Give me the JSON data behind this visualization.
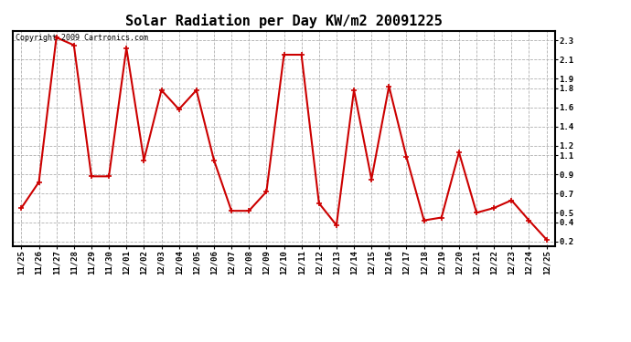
{
  "title": "Solar Radiation per Day KW/m2 20091225",
  "copyright_text": "Copyright 2009 Cartronics.com",
  "labels": [
    "11/25",
    "11/26",
    "11/27",
    "11/28",
    "11/29",
    "11/30",
    "12/01",
    "12/02",
    "12/03",
    "12/04",
    "12/05",
    "12/06",
    "12/07",
    "12/08",
    "12/09",
    "12/10",
    "12/11",
    "12/12",
    "12/13",
    "12/14",
    "12/15",
    "12/16",
    "12/17",
    "12/18",
    "12/19",
    "12/20",
    "12/21",
    "12/22",
    "12/23",
    "12/24",
    "12/25"
  ],
  "values": [
    0.55,
    0.82,
    2.33,
    2.25,
    0.88,
    0.88,
    2.22,
    1.05,
    1.78,
    1.58,
    1.78,
    1.05,
    0.52,
    0.52,
    0.72,
    2.15,
    2.15,
    0.6,
    0.37,
    1.78,
    0.85,
    1.82,
    1.08,
    0.42,
    0.45,
    1.13,
    0.5,
    0.55,
    0.63,
    0.42,
    0.22
  ],
  "line_color": "#cc0000",
  "marker": "+",
  "marker_size": 4,
  "marker_lw": 1.2,
  "line_width": 1.5,
  "bg_color": "#ffffff",
  "plot_bg_color": "#ffffff",
  "grid_color": "#b0b0b0",
  "grid_linestyle": "--",
  "ylim": [
    0.15,
    2.4
  ],
  "yticks": [
    2.3,
    2.1,
    1.9,
    1.8,
    1.6,
    1.4,
    1.2,
    1.1,
    0.9,
    0.7,
    0.5,
    0.4,
    0.2
  ],
  "title_fontsize": 11,
  "tick_fontsize": 6.5,
  "copyright_fontsize": 6.0,
  "figwidth": 6.9,
  "figheight": 3.75,
  "dpi": 100
}
